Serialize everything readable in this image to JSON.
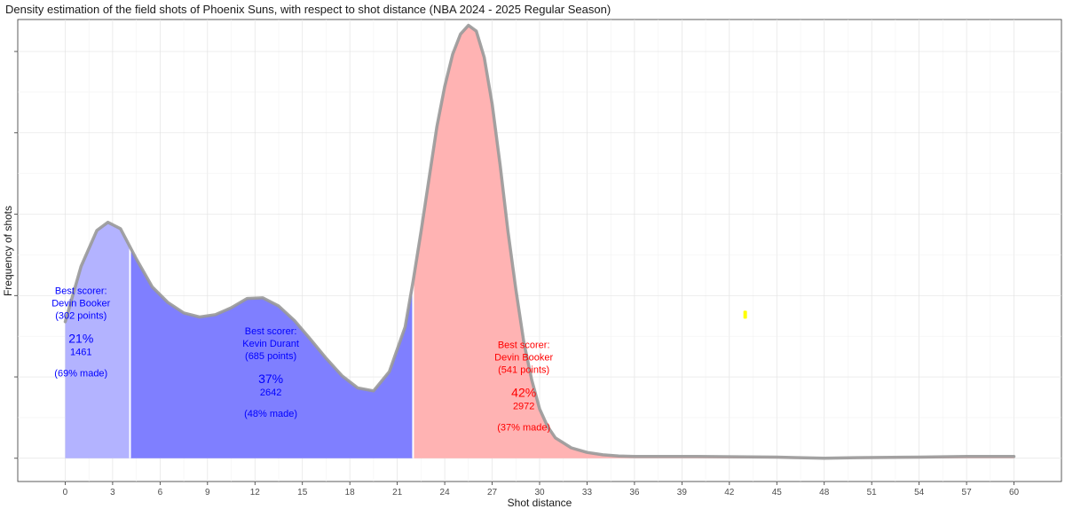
{
  "chart_data": {
    "type": "area",
    "title": "Density estimation of the field shots of Phoenix Suns, with respect to shot distance (NBA 2024 - 2025 Regular Season)",
    "xlabel": "Shot distance",
    "ylabel": "Frequency of shots",
    "xlim": [
      -3,
      63
    ],
    "ylim": [
      -0.004,
      0.0755
    ],
    "x_ticks": [
      "0",
      "3",
      "6",
      "9",
      "12",
      "15",
      "18",
      "21",
      "24",
      "27",
      "30",
      "33",
      "36",
      "39",
      "42",
      "45",
      "48",
      "51",
      "54",
      "57",
      "60"
    ],
    "grid": true,
    "legend": "none",
    "curve": {
      "x": [
        0,
        1,
        2,
        2.7,
        3.5,
        4.5,
        5.5,
        6.5,
        7.5,
        8.5,
        9.5,
        10.5,
        11.5,
        12.5,
        13.5,
        14.5,
        15.5,
        16.5,
        17.5,
        18.5,
        19.5,
        20.5,
        21.5,
        22,
        22.5,
        23,
        23.5,
        24,
        24.5,
        25,
        25.5,
        26,
        26.5,
        27,
        27.5,
        28,
        28.5,
        29,
        29.5,
        30,
        30.5,
        31,
        32,
        33,
        34,
        35,
        36,
        40,
        45,
        48,
        50,
        54,
        57,
        60
      ],
      "y": [
        0.0235,
        0.033,
        0.0392,
        0.0406,
        0.0395,
        0.0343,
        0.0295,
        0.0268,
        0.025,
        0.0243,
        0.0247,
        0.0259,
        0.0275,
        0.0276,
        0.0262,
        0.0237,
        0.0205,
        0.0172,
        0.0142,
        0.0121,
        0.0116,
        0.0149,
        0.0226,
        0.0305,
        0.039,
        0.048,
        0.057,
        0.064,
        0.0695,
        0.073,
        0.0745,
        0.0735,
        0.069,
        0.061,
        0.0505,
        0.039,
        0.029,
        0.02,
        0.0135,
        0.0085,
        0.0055,
        0.0035,
        0.0018,
        0.001,
        0.0006,
        0.0004,
        0.0003,
        0.0003,
        0.0002,
        0.0,
        0.0001,
        0.0002,
        0.0003,
        0.0003
      ]
    },
    "segments": [
      {
        "x_range": [
          0,
          4.1
        ],
        "color": "#b3b3ff",
        "scorer_label": "Best scorer:",
        "scorer": "Devin Booker",
        "points": "(302 points)",
        "percent": "21%",
        "count": "1461",
        "made": "(69% made)",
        "label_color": "#0000ff"
      },
      {
        "x_range": [
          4.1,
          22
        ],
        "color": "#7f7fff",
        "scorer_label": "Best scorer:",
        "scorer": "Kevin Durant",
        "points": "(685 points)",
        "percent": "37%",
        "count": "2642",
        "made": "(48% made)",
        "label_color": "#0000ff"
      },
      {
        "x_range": [
          22,
          60
        ],
        "color": "#ffb3b3",
        "scorer_label": "Best scorer:",
        "scorer": "Devin Booker",
        "points": "(541 points)",
        "percent": "42%",
        "count": "2972",
        "made": "(37% made)",
        "label_color": "#ff0000"
      }
    ],
    "marker": {
      "x": 43,
      "y": 0.0247,
      "color": "#ffff00"
    }
  }
}
